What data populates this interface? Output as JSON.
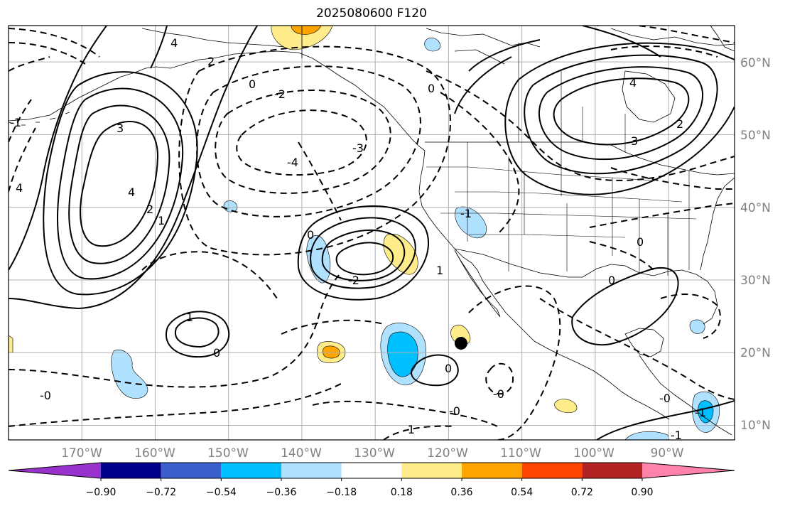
{
  "title": "2025080600 F120",
  "map": {
    "projection": "PlateCarree",
    "extent": {
      "lon_min": -180,
      "lon_max": -81,
      "lat_min": 8,
      "lat_max": 65
    },
    "longitude_labels": [
      "170°W",
      "160°W",
      "150°W",
      "140°W",
      "130°W",
      "120°W",
      "110°W",
      "100°W",
      "90°W"
    ],
    "latitude_labels": [
      "60°N",
      "50°N",
      "40°N",
      "30°N",
      "20°N",
      "10°N"
    ],
    "grid": true,
    "contours_solid": "positive values",
    "contours_dashed": "negative values",
    "contour_labels": [
      "4",
      "2",
      "3",
      "4",
      "1",
      "2",
      "4",
      "0",
      "-4",
      "-3",
      "0",
      "-2",
      "4",
      "2",
      "3",
      "-0",
      "0",
      "0",
      "-1",
      "-1",
      "1",
      "0",
      "0",
      "0",
      "-1",
      "1",
      "-0",
      "-0",
      "-1",
      "-0",
      "-1",
      "-2"
    ],
    "marker": {
      "lon": -118.3,
      "lat": 21.3
    }
  },
  "colorbar": {
    "colors": [
      "#9932cc",
      "#00008b",
      "#3a5fcd",
      "#00bfff",
      "#b0e2ff",
      "#ffffff",
      "#ffec8b",
      "#ffa500",
      "#ff4500",
      "#b22222",
      "#ff82ab"
    ],
    "extend": "both",
    "tick_labels": [
      "−0.90",
      "−0.72",
      "−0.54",
      "−0.36",
      "−0.18",
      "0.18",
      "0.36",
      "0.54",
      "0.72",
      "0.90"
    ]
  }
}
